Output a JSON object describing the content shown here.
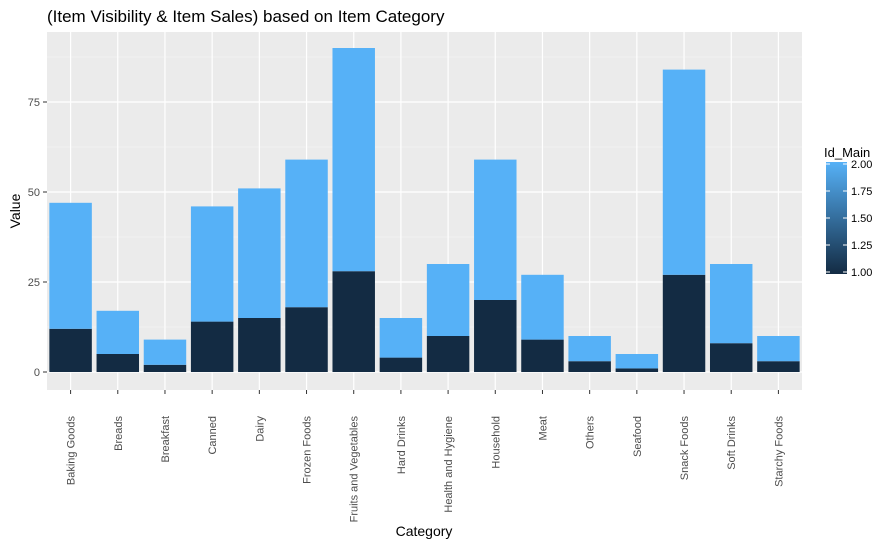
{
  "chart_data": {
    "type": "bar",
    "stacked": true,
    "title": "(Item Visibility & Item Sales) based on Item Category",
    "xlabel": "Category",
    "ylabel": "Value",
    "ylim": [
      0,
      96
    ],
    "yticks": [
      0,
      25,
      50,
      75
    ],
    "grid": true,
    "categories": [
      "Baking Goods",
      "Breads",
      "Breakfast",
      "Canned",
      "Dairy",
      "Frozen Foods",
      "Fruits and Vegetables",
      "Hard Drinks",
      "Health and Hygiene",
      "Household",
      "Meat",
      "Others",
      "Seafood",
      "Snack Foods",
      "Soft Drinks",
      "Starchy Foods"
    ],
    "series": [
      {
        "color": "#132b43",
        "values": [
          12,
          5,
          2,
          14,
          15,
          18,
          28,
          4,
          10,
          20,
          9,
          3,
          1,
          27,
          8,
          3
        ]
      },
      {
        "color": "#56b1f7",
        "values": [
          35,
          12,
          7,
          32,
          36,
          41,
          62,
          11,
          20,
          39,
          18,
          7,
          4,
          57,
          22,
          7
        ]
      }
    ],
    "legend": {
      "title": "Id_Main",
      "placement": "right",
      "min": 1.0,
      "max": 2.0,
      "ticks": [
        "1.00",
        "1.25",
        "1.50",
        "1.75",
        "2.00"
      ],
      "low_color": "#132b43",
      "high_color": "#56b1f7"
    }
  }
}
